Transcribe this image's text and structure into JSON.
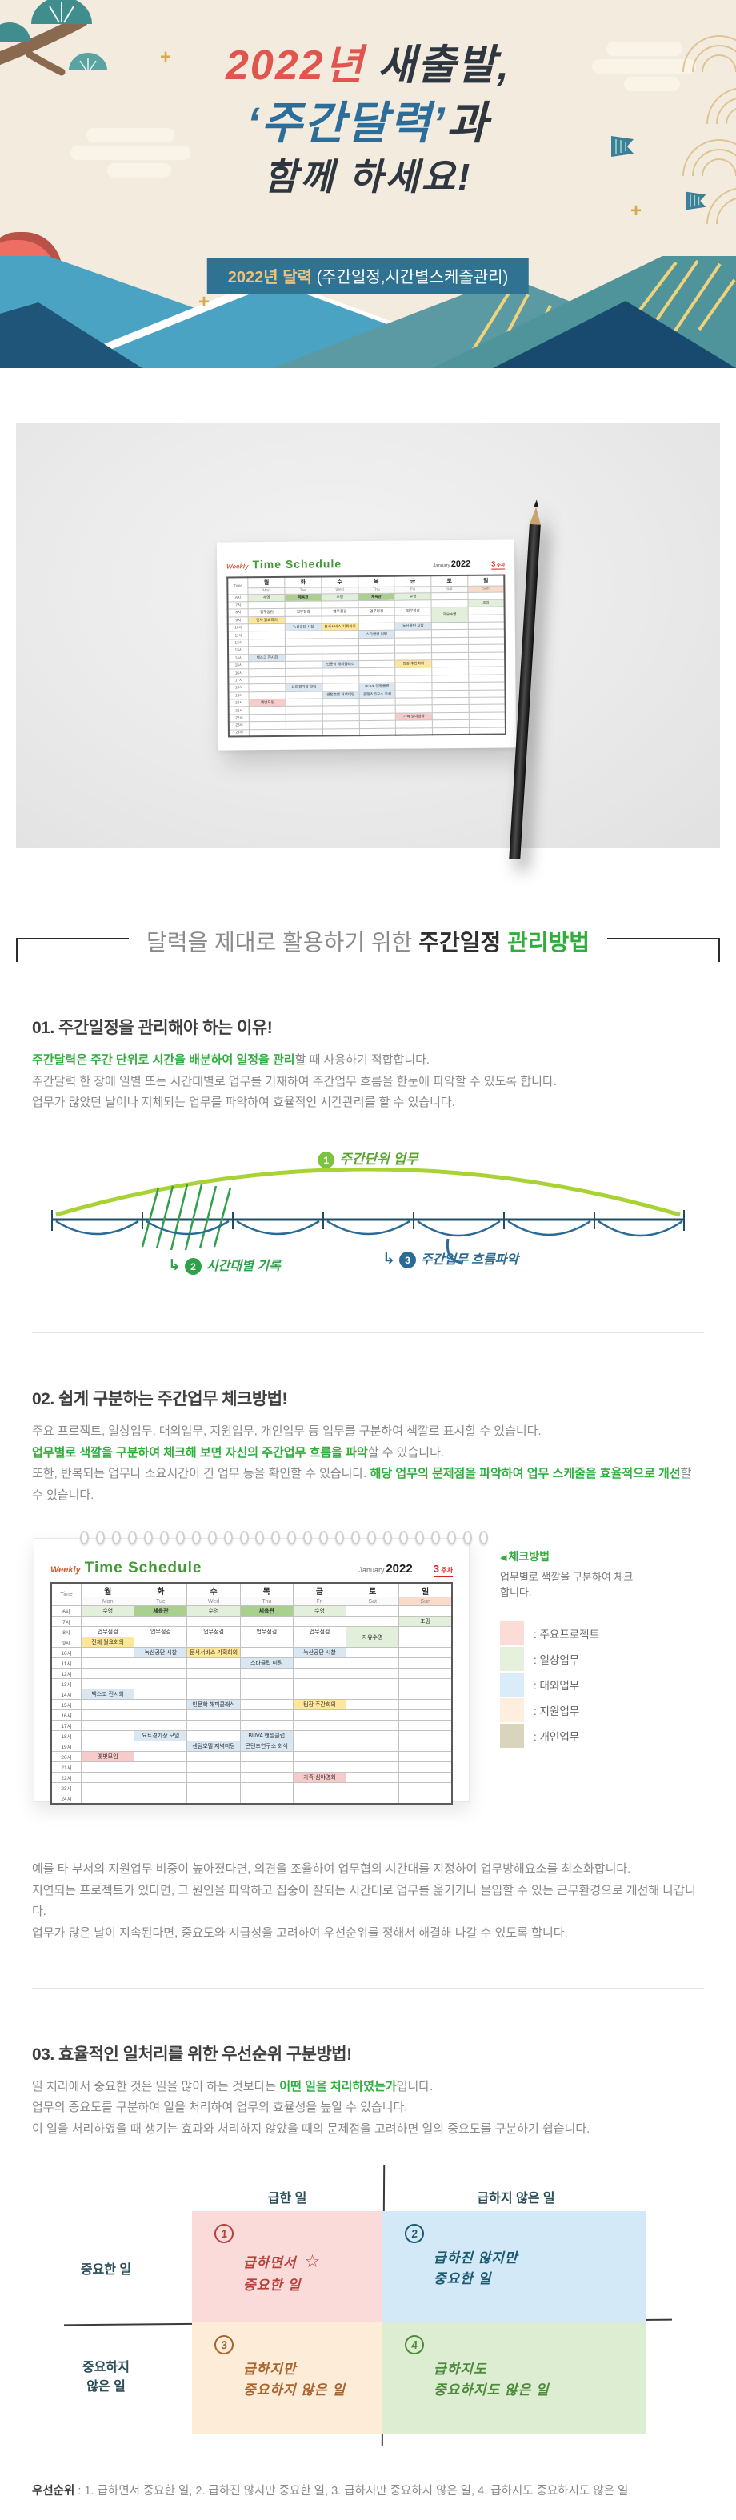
{
  "header": {
    "title_l1_red": "2022년",
    "title_l1_dark": " 새출발,",
    "title_l2_blue": "‘주간달력’",
    "title_l2_dark": "과",
    "title_l3": "함께 하세요!",
    "ribbon_gold": "2022년 달력",
    "ribbon_white": " (주간일정,시간별스케줄관리)"
  },
  "calendar": {
    "weekly_label": "Weekly",
    "title": "Time Schedule",
    "month_label": "January.",
    "year": "2022",
    "week_num": "3",
    "week_suffix": " 주차",
    "time_label": "Time",
    "days": [
      {
        "ko": "월",
        "en": "Mon"
      },
      {
        "ko": "화",
        "en": "Tue"
      },
      {
        "ko": "수",
        "en": "Wed"
      },
      {
        "ko": "목",
        "en": "Thu"
      },
      {
        "ko": "금",
        "en": "Fri"
      },
      {
        "ko": "토",
        "en": "Sat"
      },
      {
        "ko": "일",
        "en": "Sun"
      }
    ],
    "hours": [
      "6시",
      "7시",
      "8시",
      "9시",
      "10시",
      "11시",
      "12시",
      "13시",
      "14시",
      "15시",
      "16시",
      "17시",
      "18시",
      "19시",
      "20시",
      "21시",
      "22시",
      "23시",
      "24시"
    ],
    "colors": {
      "g1": "#e2efda",
      "g2": "#a9d18e",
      "yl": "#ffe699",
      "bl": "#d9e7f3",
      "pk": "#f8cbcb",
      "sun": "#fadbc9"
    },
    "events": [
      {
        "h": 0,
        "d": 0,
        "t": "수영",
        "c": "g1"
      },
      {
        "h": 0,
        "d": 1,
        "t": "체육관",
        "c": "g2"
      },
      {
        "h": 0,
        "d": 2,
        "t": "수영",
        "c": "g1"
      },
      {
        "h": 0,
        "d": 3,
        "t": "체육관",
        "c": "g2"
      },
      {
        "h": 0,
        "d": 4,
        "t": "수영",
        "c": "g1"
      },
      {
        "h": 1,
        "d": 6,
        "t": "조깅",
        "c": "g1"
      },
      {
        "h": 2,
        "d": 0,
        "t": "업무점검",
        "c": ""
      },
      {
        "h": 2,
        "d": 1,
        "t": "업무점검",
        "c": ""
      },
      {
        "h": 2,
        "d": 2,
        "t": "업무점검",
        "c": ""
      },
      {
        "h": 2,
        "d": 3,
        "t": "업무점검",
        "c": ""
      },
      {
        "h": 2,
        "d": 4,
        "t": "업무점검",
        "c": ""
      },
      {
        "h": 2,
        "d": 5,
        "t": "자유수영",
        "c": "g1",
        "span": 2
      },
      {
        "h": 3,
        "d": 0,
        "t": "전체 월요회의",
        "c": "yl"
      },
      {
        "h": 4,
        "d": 1,
        "t": "녹산공단 시찰",
        "c": "bl"
      },
      {
        "h": 4,
        "d": 2,
        "t": "문서서비스 기획회의",
        "c": "yl"
      },
      {
        "h": 4,
        "d": 4,
        "t": "녹산공단 시찰",
        "c": "bl"
      },
      {
        "h": 5,
        "d": 3,
        "t": "스타클럽 미팅",
        "c": "bl"
      },
      {
        "h": 8,
        "d": 0,
        "t": "벡스코 전시회",
        "c": "bl"
      },
      {
        "h": 9,
        "d": 2,
        "t": "인문학 해피클래식",
        "c": "bl"
      },
      {
        "h": 9,
        "d": 4,
        "t": "팀장 주간회의",
        "c": "yl"
      },
      {
        "h": 12,
        "d": 1,
        "t": "요트경기장 모임",
        "c": "bl"
      },
      {
        "h": 12,
        "d": 3,
        "t": "BUVA 앤젤클럽",
        "c": "bl"
      },
      {
        "h": 13,
        "d": 2,
        "t": "센텀호텔 저녁미팅",
        "c": "bl"
      },
      {
        "h": 13,
        "d": 3,
        "t": "콘텐츠연구소 회식",
        "c": "bl"
      },
      {
        "h": 14,
        "d": 0,
        "t": "옛벗모임",
        "c": "pk"
      },
      {
        "h": 16,
        "d": 4,
        "t": "가족 심야영화",
        "c": "pk"
      }
    ]
  },
  "main_title": {
    "gray": "달력을 제대로 활용하기 위한 ",
    "dark": "주간일정 ",
    "green": "관리방법"
  },
  "section01": {
    "title": "01. 주간일정을 관리해야 하는 이유!",
    "l1_green": "주간달력은 주간 단위로 시간을 배분하여 일정을 관리",
    "l1_rest": "할 때 사용하기 적합합니다.",
    "l2": "주간달력 한 장에 일별 또는 시간대별로 업무를 기재하여 주간업무 흐름을 한눈에 파악할 수 있도록 합니다.",
    "l3": "업무가 많았던 날이나 지체되는 업무를 파악하여 효율적인 시간관리를 할 수 있습니다.",
    "diagram": {
      "num1": "1",
      "label1": "주간단위 업무",
      "num2": "2",
      "label2": "시간대별 기록",
      "num3": "3",
      "label3": "주간업무 흐름파악",
      "arrow": "↳"
    }
  },
  "section02": {
    "title": "02. 쉽게 구분하는 주간업무 체크방법!",
    "l1": "주요 프로젝트, 일상업무, 대외업무, 지원업무, 개인업무 등 업무를 구분하여 색깔로 표시할 수 있습니다.",
    "l2_green": "업무별로 색깔을 구분하여 체크해 보면 자신의 주간업무 흐름을 파악",
    "l2_rest": "할 수 있습니다.",
    "l3_pre": "또한, 반복되는 업무나 소요시간이 긴 업무 등을 확인할 수 있습니다. ",
    "l3_green": "해당 업무의 문제점을 파악하여 업무 스케줄을 효율적으로 개선",
    "l3_post": "할 수 있습니다.",
    "legend": {
      "arrow": "◀",
      "title": "체크방법",
      "desc": "업무별로 색깔을 구분하여 체크합니다.",
      "items": [
        {
          "color": "#fbdcd7",
          "label": ": 주요프로젝트"
        },
        {
          "color": "#e6f0dc",
          "label": ": 일상업무"
        },
        {
          "color": "#d9ecf7",
          "label": ": 대외업무"
        },
        {
          "color": "#fdeede",
          "label": ": 지원업무"
        },
        {
          "color": "#d9d5bc",
          "label": ": 개인업무"
        }
      ]
    },
    "p1": "예를 타 부서의 지원업무 비중이 높아졌다면, 의견을 조율하여 업무협의 시간대를 지정하여 업무방해요소를 최소화합니다.",
    "p2": "지연되는 프로젝트가 있다면, 그 원인을 파악하고 집중이 잘되는 시간대로 업무를 옮기거나 몰입할 수 있는 근무환경으로 개선해 나갑니다.",
    "p3": "업무가 많은 날이 지속된다면, 중요도와 시급성을 고려하여 우선순위를 정해서 해결해 나갈 수 있도록 합니다."
  },
  "section03": {
    "title": "03. 효율적인 일처리를 위한 우선순위 구분방법!",
    "l1_pre": "일 처리에서 중요한 것은 일을 많이 하는 것보다는 ",
    "l1_green": "어떤 일을 처리하였는가",
    "l1_post": "입니다.",
    "l2": "업무의 중요도를 구분하여 일을 처리하여 업무의 효율성을 높일 수 있습니다.",
    "l3": "이 일을 처리하였을 때 생기는 효과와 처리하지 않았을 때의 문제점을 고려하면 일의 중요도를 구분하기 쉽습니다.",
    "matrix": {
      "col1": "급한 일",
      "col2": "급하지 않은 일",
      "row1": "중요한 일",
      "row2": "중요하지\n않은 일",
      "star": "☆",
      "quadrants": [
        {
          "num": "1",
          "line1": "급하면서",
          "line2": "중요한 일",
          "bg": "#fbdbd9",
          "ink": "#b5423c",
          "star": true
        },
        {
          "num": "2",
          "line1": "급하진 않지만",
          "line2": "중요한 일",
          "bg": "#d3e9f7",
          "ink": "#1c5a70",
          "star": false
        },
        {
          "num": "3",
          "line1": "급하지만",
          "line2": "중요하지 않은 일",
          "bg": "#fdecd8",
          "ink": "#a8652f",
          "star": false
        },
        {
          "num": "4",
          "line1": "급하지도",
          "line2": "중요하지도 않은 일",
          "bg": "#ddedd2",
          "ink": "#4d8a3c",
          "star": false
        }
      ]
    },
    "priority_bold": "우선순위",
    "priority_rest": " : 1. 급하면서 중요한 일,  2. 급하진 않지만 중요한 일,  3. 급하지만 중요하지 않은 일,  4. 급하지도 중요하지도 않은 일."
  }
}
